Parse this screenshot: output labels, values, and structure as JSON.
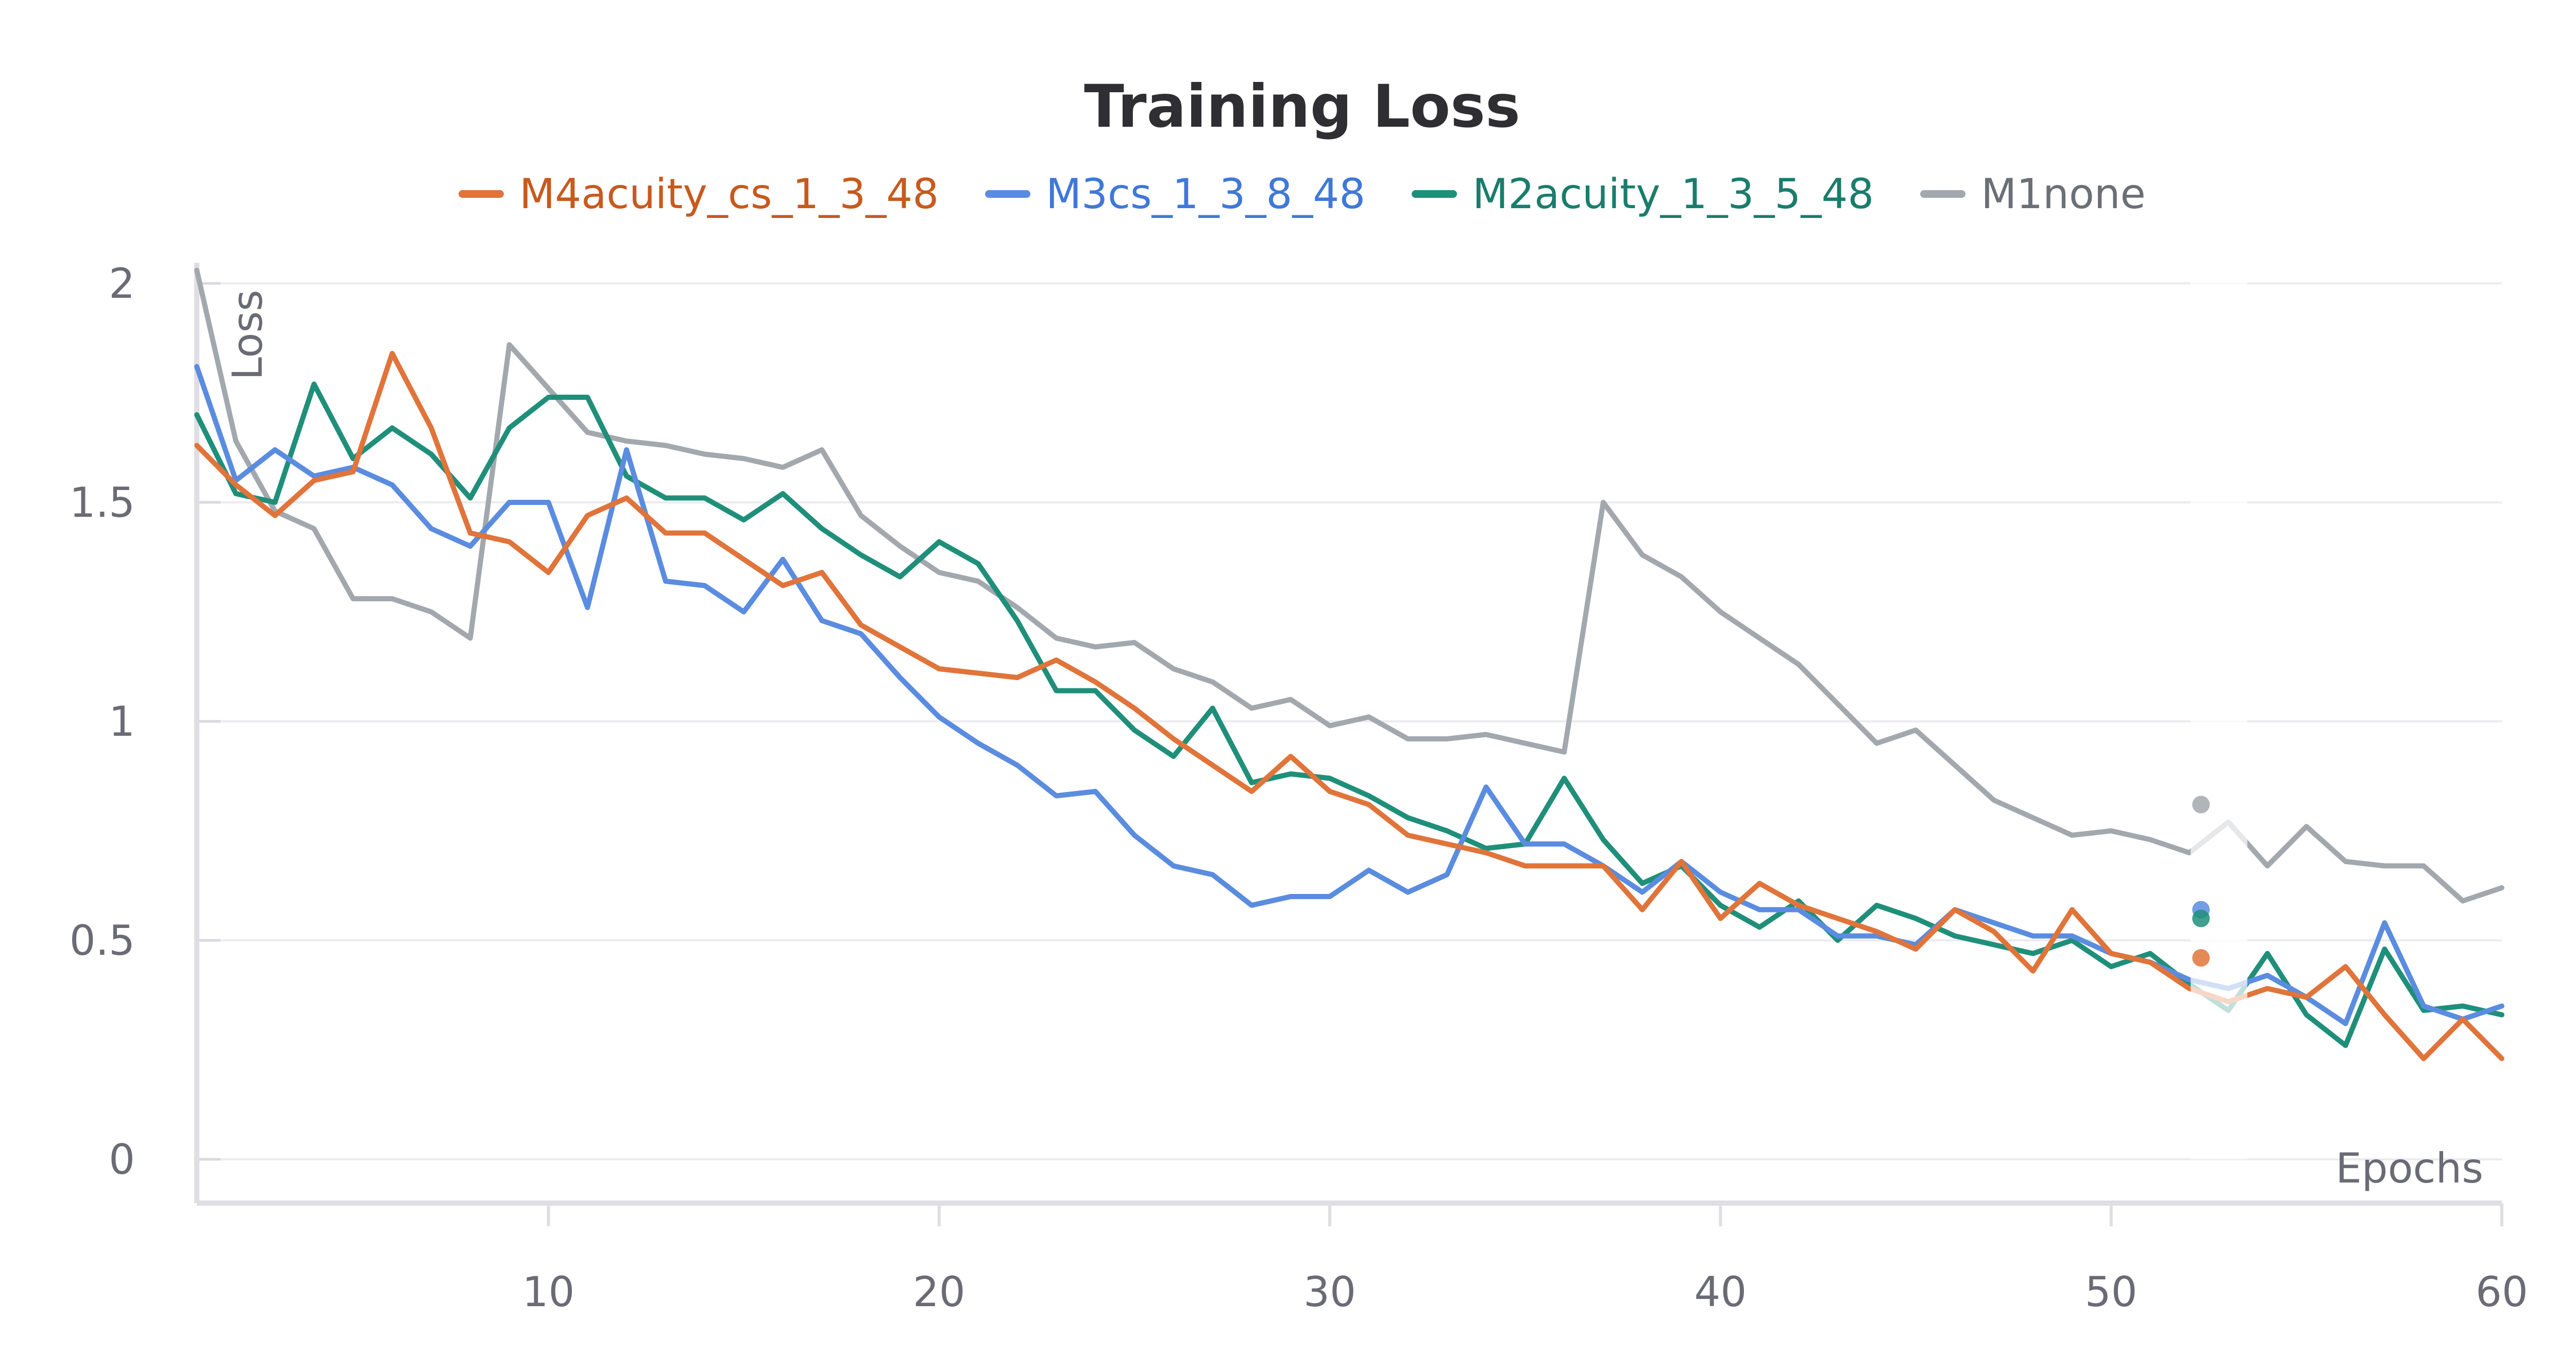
{
  "chart_data": {
    "type": "line",
    "title": "Training Loss",
    "xlabel": "Epochs",
    "ylabel": "Loss",
    "xlim": [
      1,
      60
    ],
    "ylim": [
      0,
      2
    ],
    "x_ticks": [
      10,
      20,
      30,
      40,
      50,
      60
    ],
    "y_ticks": [
      0,
      0.5,
      1,
      1.5,
      2
    ],
    "y_tick_labels": [
      "0",
      "0.5",
      "1",
      "1.5",
      "2"
    ],
    "grid": true,
    "legend_position": "top-center",
    "x": [
      1,
      2,
      3,
      4,
      5,
      6,
      7,
      8,
      9,
      10,
      11,
      12,
      13,
      14,
      15,
      16,
      17,
      18,
      19,
      20,
      21,
      22,
      23,
      24,
      25,
      26,
      27,
      28,
      29,
      30,
      31,
      32,
      33,
      34,
      35,
      36,
      37,
      38,
      39,
      40,
      41,
      42,
      43,
      44,
      45,
      46,
      47,
      48,
      49,
      50,
      51,
      52,
      53,
      54,
      55,
      56,
      57,
      58,
      59,
      60
    ],
    "series": [
      {
        "name": "M4acuity_cs_1_3_48",
        "color": "#e0743a",
        "label_color": "#c75a1e",
        "values": [
          1.63,
          1.54,
          1.47,
          1.55,
          1.57,
          1.84,
          1.67,
          1.43,
          1.41,
          1.34,
          1.47,
          1.51,
          1.43,
          1.43,
          1.37,
          1.31,
          1.34,
          1.22,
          1.17,
          1.12,
          1.11,
          1.1,
          1.14,
          1.09,
          1.03,
          0.96,
          0.9,
          0.84,
          0.92,
          0.84,
          0.81,
          0.74,
          0.72,
          0.7,
          0.67,
          0.67,
          0.67,
          0.57,
          0.68,
          0.55,
          0.63,
          0.58,
          0.55,
          0.52,
          0.48,
          0.57,
          0.52,
          0.43,
          0.57,
          0.47,
          0.45,
          0.39,
          0.36,
          0.39,
          0.37,
          0.44,
          0.33,
          0.23,
          0.32,
          0.23
        ]
      },
      {
        "name": "M3cs_1_3_8_48",
        "color": "#5a8ce0",
        "label_color": "#3f78d8",
        "values": [
          1.81,
          1.55,
          1.62,
          1.56,
          1.58,
          1.54,
          1.44,
          1.4,
          1.5,
          1.5,
          1.26,
          1.62,
          1.32,
          1.31,
          1.25,
          1.37,
          1.23,
          1.2,
          1.1,
          1.01,
          0.95,
          0.9,
          0.83,
          0.84,
          0.74,
          0.67,
          0.65,
          0.58,
          0.6,
          0.6,
          0.66,
          0.61,
          0.65,
          0.85,
          0.72,
          0.72,
          0.67,
          0.61,
          0.68,
          0.61,
          0.57,
          0.57,
          0.51,
          0.51,
          0.49,
          0.57,
          0.54,
          0.51,
          0.51,
          0.47,
          0.45,
          0.41,
          0.39,
          0.42,
          0.37,
          0.31,
          0.54,
          0.35,
          0.32,
          0.35
        ]
      },
      {
        "name": "M2acuity_1_3_5_48",
        "color": "#1f8f7a",
        "label_color": "#1a7d6c",
        "values": [
          1.7,
          1.52,
          1.5,
          1.77,
          1.6,
          1.67,
          1.61,
          1.51,
          1.67,
          1.74,
          1.74,
          1.56,
          1.51,
          1.51,
          1.46,
          1.52,
          1.44,
          1.38,
          1.33,
          1.41,
          1.36,
          1.23,
          1.07,
          1.07,
          0.98,
          0.92,
          1.03,
          0.86,
          0.88,
          0.87,
          0.83,
          0.78,
          0.75,
          0.71,
          0.72,
          0.87,
          0.73,
          0.63,
          0.67,
          0.58,
          0.53,
          0.59,
          0.5,
          0.58,
          0.55,
          0.51,
          0.49,
          0.47,
          0.5,
          0.44,
          0.47,
          0.4,
          0.34,
          0.47,
          0.33,
          0.26,
          0.48,
          0.34,
          0.35,
          0.33
        ]
      },
      {
        "name": "M1none",
        "color": "#a3a8ae",
        "label_color": "#6b6f76",
        "values": [
          2.03,
          1.64,
          1.48,
          1.44,
          1.28,
          1.28,
          1.25,
          1.19,
          1.86,
          1.76,
          1.66,
          1.64,
          1.63,
          1.61,
          1.6,
          1.58,
          1.62,
          1.47,
          1.4,
          1.34,
          1.32,
          1.26,
          1.19,
          1.17,
          1.18,
          1.12,
          1.09,
          1.03,
          1.05,
          0.99,
          1.01,
          0.96,
          0.96,
          0.97,
          0.95,
          0.93,
          1.5,
          1.38,
          1.33,
          1.25,
          1.19,
          1.13,
          1.04,
          0.95,
          0.98,
          0.9,
          0.82,
          0.78,
          0.74,
          0.75,
          0.73,
          0.7,
          0.77,
          0.67,
          0.76,
          0.68,
          0.67,
          0.67,
          0.59,
          0.62
        ]
      }
    ],
    "hover_marker_x": 52.3,
    "hover_markers": [
      {
        "series": "M1none",
        "value": 0.81
      },
      {
        "series": "M3cs_1_3_8_48",
        "value": 0.57
      },
      {
        "series": "M2acuity_1_3_5_48",
        "value": 0.55
      },
      {
        "series": "M4acuity_cs_1_3_48",
        "value": 0.46
      }
    ]
  }
}
